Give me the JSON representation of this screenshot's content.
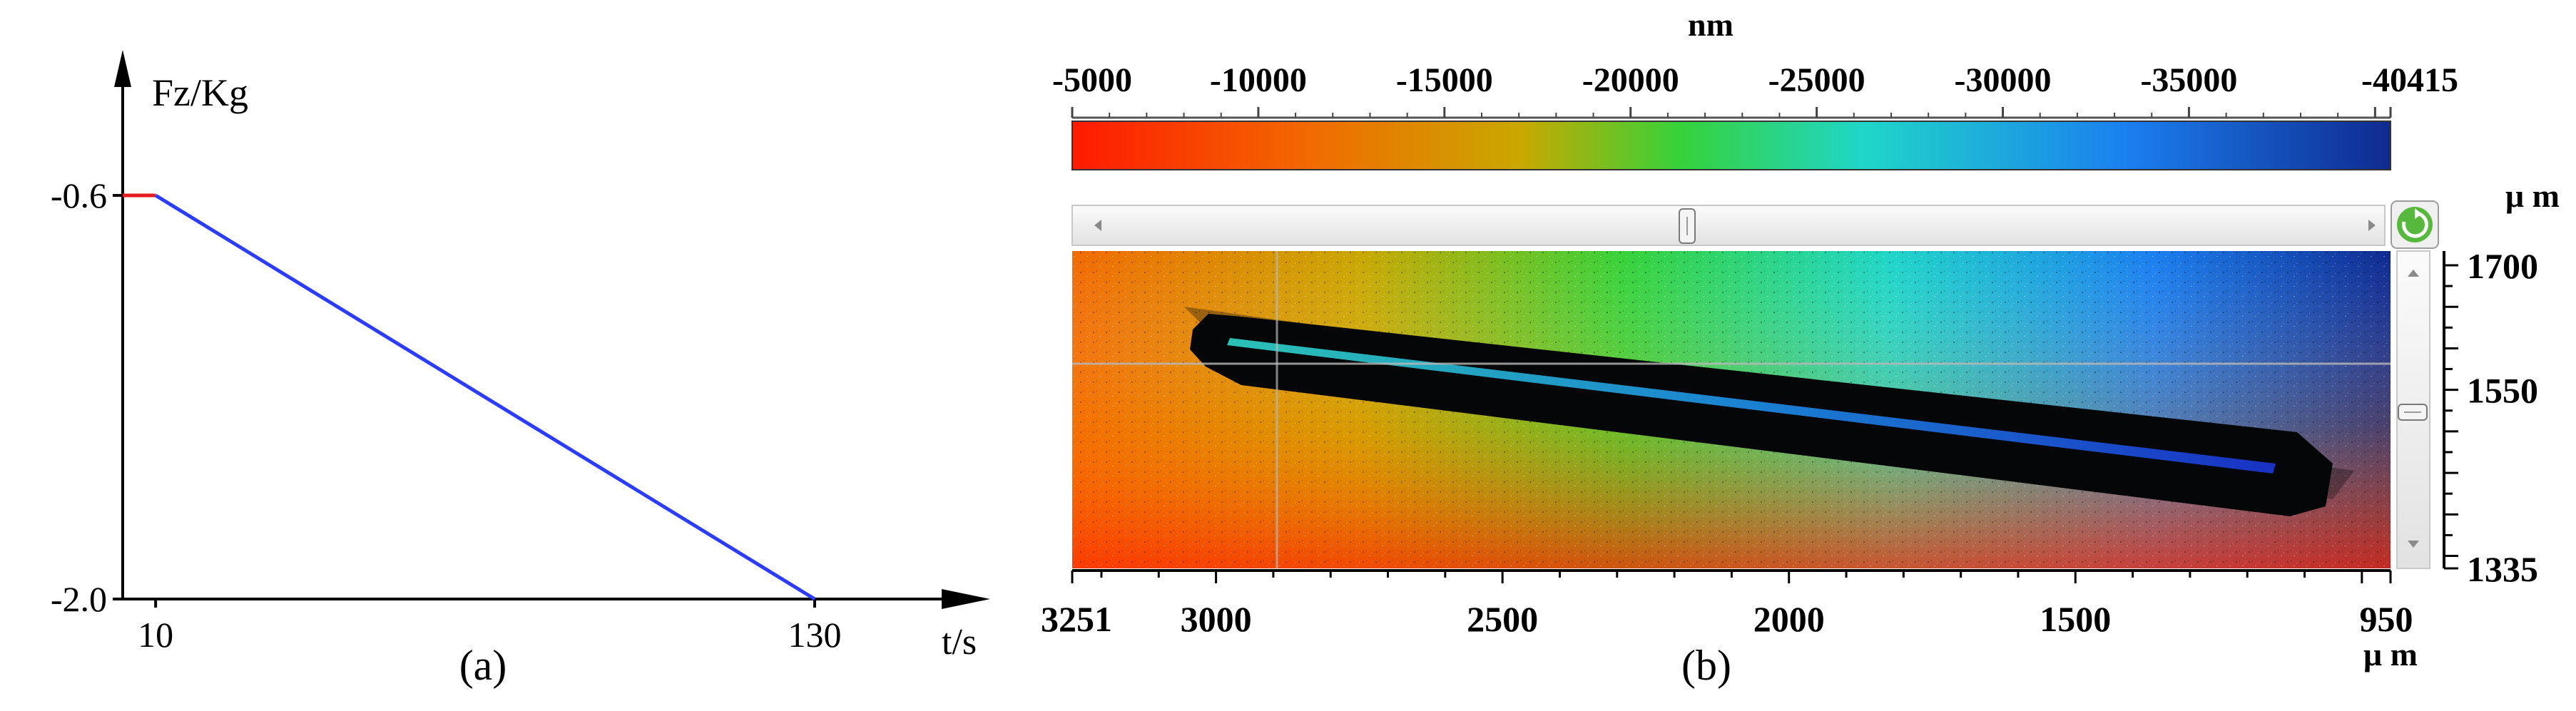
{
  "panel_a": {
    "caption": "(a)",
    "ylabel": "Fz/Kg",
    "xlabel": "t/s",
    "ytick_labels": [
      "-0.6",
      "-2.0"
    ],
    "xtick_labels": [
      "10",
      "130"
    ]
  },
  "panel_b": {
    "caption": "(b)",
    "colorbar_unit": "nm",
    "colorbar_tick_labels": [
      "-5000",
      "-10000",
      "-15000",
      "-20000",
      "-25000",
      "-30000",
      "-35000",
      "-40415"
    ],
    "x_unit": "μ m",
    "y_unit": "μ m",
    "xtick_labels": [
      "3251",
      "3000",
      "2500",
      "2000",
      "1500",
      "950"
    ],
    "ytick_labels": [
      "1700",
      "1550",
      "1335"
    ],
    "refresh_icon": "refresh-icon",
    "colors": {
      "c1": "#ff1a00",
      "c2": "#f26a00",
      "c3": "#c9a800",
      "c4": "#36d23a",
      "c5": "#1fd6c8",
      "c6": "#1b7ff0",
      "c7": "#0f2a8f",
      "groove": "#050608"
    }
  },
  "chart_data": [
    {
      "type": "line",
      "xlabel": "t/s",
      "ylabel": "Fz/Kg",
      "xlim": [
        0,
        145
      ],
      "ylim": [
        -2.0,
        -0.2
      ],
      "series": [
        {
          "color": "#e41a1c",
          "x": [
            0,
            10
          ],
          "y": [
            -0.6,
            -0.6
          ]
        },
        {
          "color": "#2b3cff",
          "x": [
            10,
            130
          ],
          "y": [
            -0.6,
            -2.0
          ]
        }
      ]
    },
    {
      "type": "heatmap",
      "colorbar_label": "nm",
      "colorbar_range": [
        -5000,
        -40415
      ],
      "xlabel": "μ m",
      "ylabel": "μ m",
      "xlim": [
        3251,
        950
      ],
      "ylim": [
        1335,
        1700
      ]
    }
  ]
}
